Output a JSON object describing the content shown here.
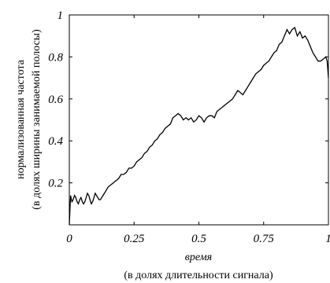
{
  "chart_data": {
    "type": "line",
    "title": "",
    "xlabel": "время",
    "xlabel_sub": "(в долях длительности сигнала)",
    "ylabel": "нормализованная частота",
    "ylabel_sub": "(в долях ширины занимаемой полосы)",
    "xlim": [
      0,
      1
    ],
    "ylim": [
      0,
      1
    ],
    "xticks": [
      0,
      0.25,
      0.5,
      0.75,
      1
    ],
    "xtick_labels": [
      "0",
      "0.25",
      "0.5",
      "0.75",
      "1"
    ],
    "yticks": [
      0.2,
      0.4,
      0.6,
      0.8,
      1
    ],
    "ytick_labels": [
      "0.2",
      "0.4",
      "0.6",
      "0.8",
      "1"
    ],
    "grid": false,
    "line_color": "#000000",
    "series": [
      {
        "x": [
          0.0,
          0.005,
          0.01,
          0.015,
          0.02,
          0.025,
          0.03,
          0.035,
          0.04,
          0.045,
          0.05,
          0.055,
          0.06,
          0.065,
          0.07,
          0.075,
          0.08,
          0.085,
          0.09,
          0.095,
          0.1,
          0.105,
          0.11,
          0.115,
          0.12,
          0.125,
          0.13,
          0.14,
          0.15,
          0.16,
          0.17,
          0.18,
          0.19,
          0.2,
          0.21,
          0.22,
          0.23,
          0.24,
          0.25,
          0.26,
          0.27,
          0.28,
          0.29,
          0.3,
          0.31,
          0.32,
          0.33,
          0.34,
          0.35,
          0.36,
          0.37,
          0.38,
          0.39,
          0.4,
          0.41,
          0.42,
          0.43,
          0.44,
          0.45,
          0.46,
          0.47,
          0.48,
          0.49,
          0.5,
          0.51,
          0.52,
          0.53,
          0.54,
          0.55,
          0.56,
          0.57,
          0.58,
          0.59,
          0.6,
          0.61,
          0.62,
          0.63,
          0.64,
          0.65,
          0.66,
          0.67,
          0.68,
          0.69,
          0.7,
          0.71,
          0.72,
          0.73,
          0.74,
          0.75,
          0.76,
          0.77,
          0.78,
          0.79,
          0.8,
          0.81,
          0.82,
          0.83,
          0.84,
          0.85,
          0.86,
          0.87,
          0.88,
          0.89,
          0.9,
          0.91,
          0.92,
          0.93,
          0.94,
          0.95,
          0.96,
          0.97,
          0.98,
          0.99,
          0.995,
          1.0
        ],
        "y": [
          0.0,
          0.14,
          0.11,
          0.12,
          0.14,
          0.13,
          0.11,
          0.1,
          0.12,
          0.13,
          0.11,
          0.1,
          0.11,
          0.13,
          0.15,
          0.14,
          0.12,
          0.1,
          0.11,
          0.13,
          0.15,
          0.14,
          0.13,
          0.12,
          0.12,
          0.13,
          0.14,
          0.16,
          0.18,
          0.19,
          0.2,
          0.21,
          0.22,
          0.24,
          0.24,
          0.25,
          0.27,
          0.27,
          0.28,
          0.3,
          0.31,
          0.32,
          0.34,
          0.35,
          0.37,
          0.38,
          0.4,
          0.41,
          0.43,
          0.44,
          0.46,
          0.47,
          0.48,
          0.51,
          0.52,
          0.53,
          0.52,
          0.5,
          0.51,
          0.5,
          0.51,
          0.49,
          0.5,
          0.52,
          0.51,
          0.49,
          0.51,
          0.52,
          0.52,
          0.51,
          0.54,
          0.55,
          0.56,
          0.57,
          0.58,
          0.59,
          0.6,
          0.62,
          0.64,
          0.63,
          0.62,
          0.64,
          0.66,
          0.68,
          0.7,
          0.72,
          0.73,
          0.74,
          0.76,
          0.77,
          0.78,
          0.8,
          0.82,
          0.83,
          0.86,
          0.87,
          0.9,
          0.93,
          0.91,
          0.93,
          0.94,
          0.9,
          0.92,
          0.89,
          0.9,
          0.88,
          0.85,
          0.82,
          0.8,
          0.78,
          0.78,
          0.79,
          0.8,
          0.78,
          0.7
        ]
      }
    ]
  }
}
